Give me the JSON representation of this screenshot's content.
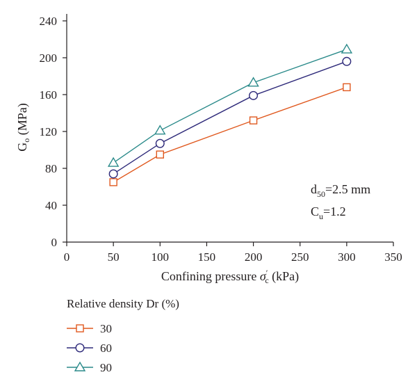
{
  "chart_data": {
    "type": "line",
    "x": [
      50,
      100,
      200,
      300
    ],
    "series": [
      {
        "name": "30",
        "values": [
          65,
          95,
          132,
          168
        ],
        "color": "#e0591f",
        "marker": "square"
      },
      {
        "name": "60",
        "values": [
          74,
          107,
          159,
          196
        ],
        "color": "#2e2a7a",
        "marker": "circle"
      },
      {
        "name": "90",
        "values": [
          86,
          121,
          173,
          209
        ],
        "color": "#2a8a8a",
        "marker": "triangle"
      }
    ],
    "xlim": [
      0,
      350
    ],
    "ylim": [
      0,
      240
    ],
    "xticks": [
      "0",
      "50",
      "100",
      "150",
      "200",
      "250",
      "300",
      "350"
    ],
    "yticks": [
      "0",
      "40",
      "80",
      "120",
      "160",
      "200",
      "240"
    ],
    "ylabel": {
      "main": "G",
      "sub": "o",
      "unit": "(MPa)"
    },
    "xlabel": {
      "prefix": "Confining pressure ",
      "symbol": "σ",
      "sup": "′",
      "sub": "c",
      "unit": " (kPa)"
    },
    "annotations": {
      "d50": {
        "main": "d",
        "sub": "50",
        "rest": "=2.5 mm"
      },
      "cu": {
        "main": "C",
        "sub": "u",
        "rest": "=1.2"
      }
    },
    "legend_title": "Relative density Dr (%)",
    "legend_position": "below",
    "grid": false
  }
}
